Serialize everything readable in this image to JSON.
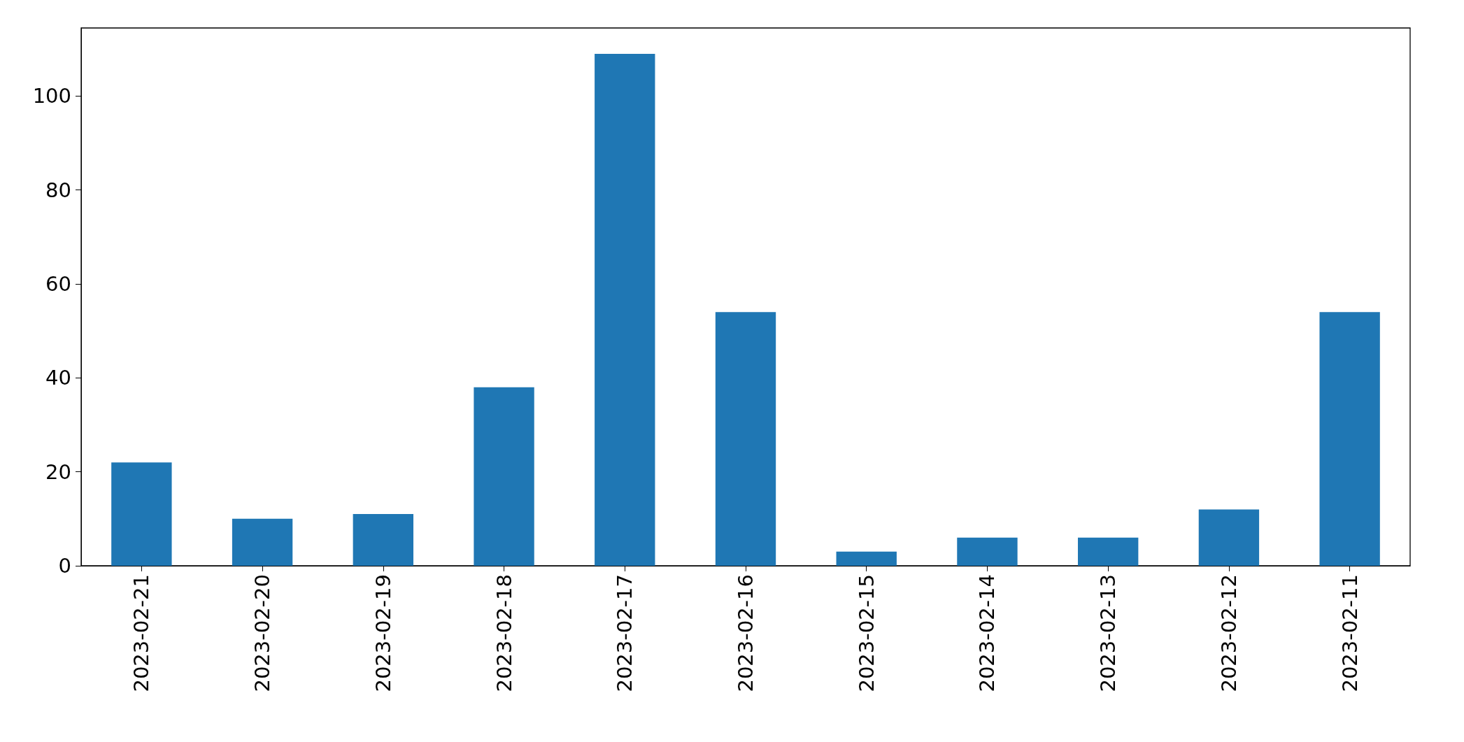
{
  "chart_data": {
    "type": "bar",
    "categories": [
      "2023-02-21",
      "2023-02-20",
      "2023-02-19",
      "2023-02-18",
      "2023-02-17",
      "2023-02-16",
      "2023-02-15",
      "2023-02-14",
      "2023-02-13",
      "2023-02-12",
      "2023-02-11"
    ],
    "values": [
      22,
      10,
      11,
      38,
      109,
      54,
      3,
      6,
      6,
      12,
      54
    ],
    "color": "#1f77b4",
    "ylim": [
      0,
      114.5
    ],
    "yticks": [
      0,
      20,
      40,
      60,
      80,
      100
    ],
    "grid": false
  }
}
